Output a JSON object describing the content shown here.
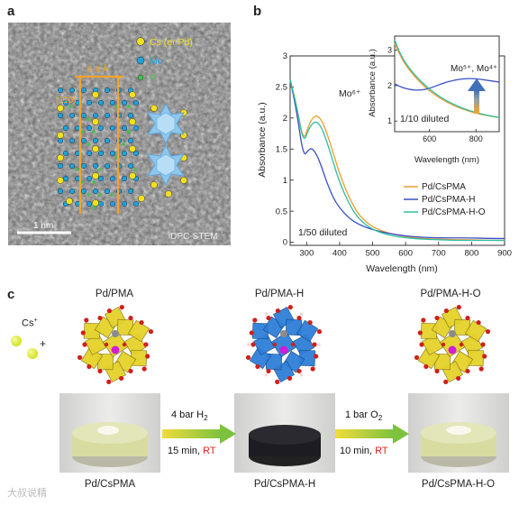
{
  "panels": {
    "a": {
      "label": "a",
      "legend": [
        {
          "text": "Cs (or Pd)",
          "color": "#f5e11a"
        },
        {
          "text": "Mo",
          "color": "#1fa3d8"
        },
        {
          "text": "P",
          "color": "#43c24a"
        }
      ],
      "distance": "8.4 Å",
      "plane": "(110)",
      "scalebar": "1 nm",
      "mode": "iDPC-STEM"
    },
    "b": {
      "label": "b",
      "peak_main": "Mo⁶⁺",
      "peak_inset": "Mo⁵⁺, Mo⁴⁺",
      "dilution_main": "1/50 diluted",
      "dilution_inset": "1/10 diluted"
    },
    "c": {
      "label": "c",
      "cs_ion": "Cs",
      "cs_charge": "+",
      "plus": "+",
      "top_labels": [
        "Pd/PMA",
        "Pd/PMA-H",
        "Pd/PMA-H-O"
      ],
      "bottom_labels": [
        "Pd/CsPMA",
        "Pd/CsPMA-H",
        "Pd/CsPMA-H-O"
      ],
      "arrow1_top": "4 bar H",
      "arrow1_top_sub": "2",
      "arrow1_bottom": "15 min, ",
      "arrow1_rt": "RT",
      "arrow2_top": "1 bar O",
      "arrow2_top_sub": "2",
      "arrow2_bottom": "10 min, ",
      "arrow2_rt": "RT"
    }
  },
  "watermark": "大叔说精",
  "chart_data": [
    {
      "type": "line",
      "xlabel": "Wavelength (nm)",
      "ylabel": "Absorbance (a.u.)",
      "xlim": [
        250,
        900
      ],
      "ylim": [
        -0.05,
        3.0
      ],
      "xticks": [
        300,
        400,
        500,
        600,
        700,
        800,
        900
      ],
      "yticks": [
        0,
        0.5,
        1.0,
        1.5,
        2.0,
        2.5,
        3.0
      ],
      "legend_position": "bottom-right",
      "series": [
        {
          "name": "Pd/CsPMA",
          "color": "#f39c2d",
          "x": [
            250,
            270,
            290,
            305,
            315,
            330,
            345,
            360,
            380,
            400,
            430,
            460,
            500,
            550,
            600,
            650,
            700,
            750,
            800,
            850,
            900
          ],
          "y": [
            2.62,
            2.2,
            1.62,
            1.86,
            1.98,
            2.05,
            1.97,
            1.78,
            1.45,
            1.1,
            0.7,
            0.42,
            0.24,
            0.14,
            0.09,
            0.06,
            0.05,
            0.04,
            0.04,
            0.03,
            0.03
          ]
        },
        {
          "name": "Pd/CsPMA-H",
          "color": "#3a4fc6",
          "x": [
            250,
            270,
            290,
            305,
            315,
            330,
            345,
            360,
            380,
            400,
            430,
            460,
            500,
            550,
            600,
            650,
            700,
            750,
            800,
            850,
            900
          ],
          "y": [
            2.62,
            2.1,
            1.38,
            1.48,
            1.52,
            1.42,
            1.22,
            0.98,
            0.72,
            0.55,
            0.38,
            0.28,
            0.2,
            0.14,
            0.1,
            0.08,
            0.07,
            0.07,
            0.07,
            0.06,
            0.06
          ]
        },
        {
          "name": "Pd/CsPMA-H-O",
          "color": "#2dbfa1",
          "x": [
            250,
            270,
            290,
            305,
            315,
            330,
            345,
            360,
            380,
            400,
            430,
            460,
            500,
            550,
            600,
            650,
            700,
            750,
            800,
            850,
            900
          ],
          "y": [
            2.62,
            2.18,
            1.6,
            1.8,
            1.9,
            1.95,
            1.85,
            1.64,
            1.3,
            0.96,
            0.6,
            0.36,
            0.2,
            0.11,
            0.07,
            0.05,
            0.04,
            0.03,
            0.03,
            0.03,
            0.03
          ]
        }
      ]
    },
    {
      "type": "line",
      "xlabel": "Wavelength (nm)",
      "ylabel": "Absorbance (a.u.)",
      "xlim": [
        450,
        900
      ],
      "ylim": [
        0.7,
        3.4
      ],
      "xticks": [
        600,
        800
      ],
      "yticks": [
        1,
        2,
        3
      ],
      "series": [
        {
          "name": "Pd/CsPMA",
          "color": "#f39c2d",
          "x": [
            450,
            470,
            500,
            550,
            600,
            650,
            700,
            750,
            800,
            850,
            900
          ],
          "y": [
            3.2,
            2.9,
            2.55,
            2.15,
            1.85,
            1.62,
            1.45,
            1.32,
            1.22,
            1.15,
            1.1
          ]
        },
        {
          "name": "Pd/CsPMA-H",
          "color": "#3a4fc6",
          "x": [
            450,
            480,
            520,
            560,
            600,
            650,
            700,
            750,
            800,
            850,
            900
          ],
          "y": [
            2.05,
            1.95,
            1.88,
            1.87,
            1.92,
            2.05,
            2.15,
            2.2,
            2.2,
            2.15,
            2.1
          ]
        },
        {
          "name": "Pd/CsPMA-H-O",
          "color": "#2dbfa1",
          "x": [
            450,
            470,
            500,
            550,
            600,
            650,
            700,
            750,
            800,
            850,
            900
          ],
          "y": [
            3.3,
            2.95,
            2.6,
            2.2,
            1.9,
            1.66,
            1.48,
            1.34,
            1.24,
            1.16,
            1.1
          ]
        }
      ]
    }
  ]
}
